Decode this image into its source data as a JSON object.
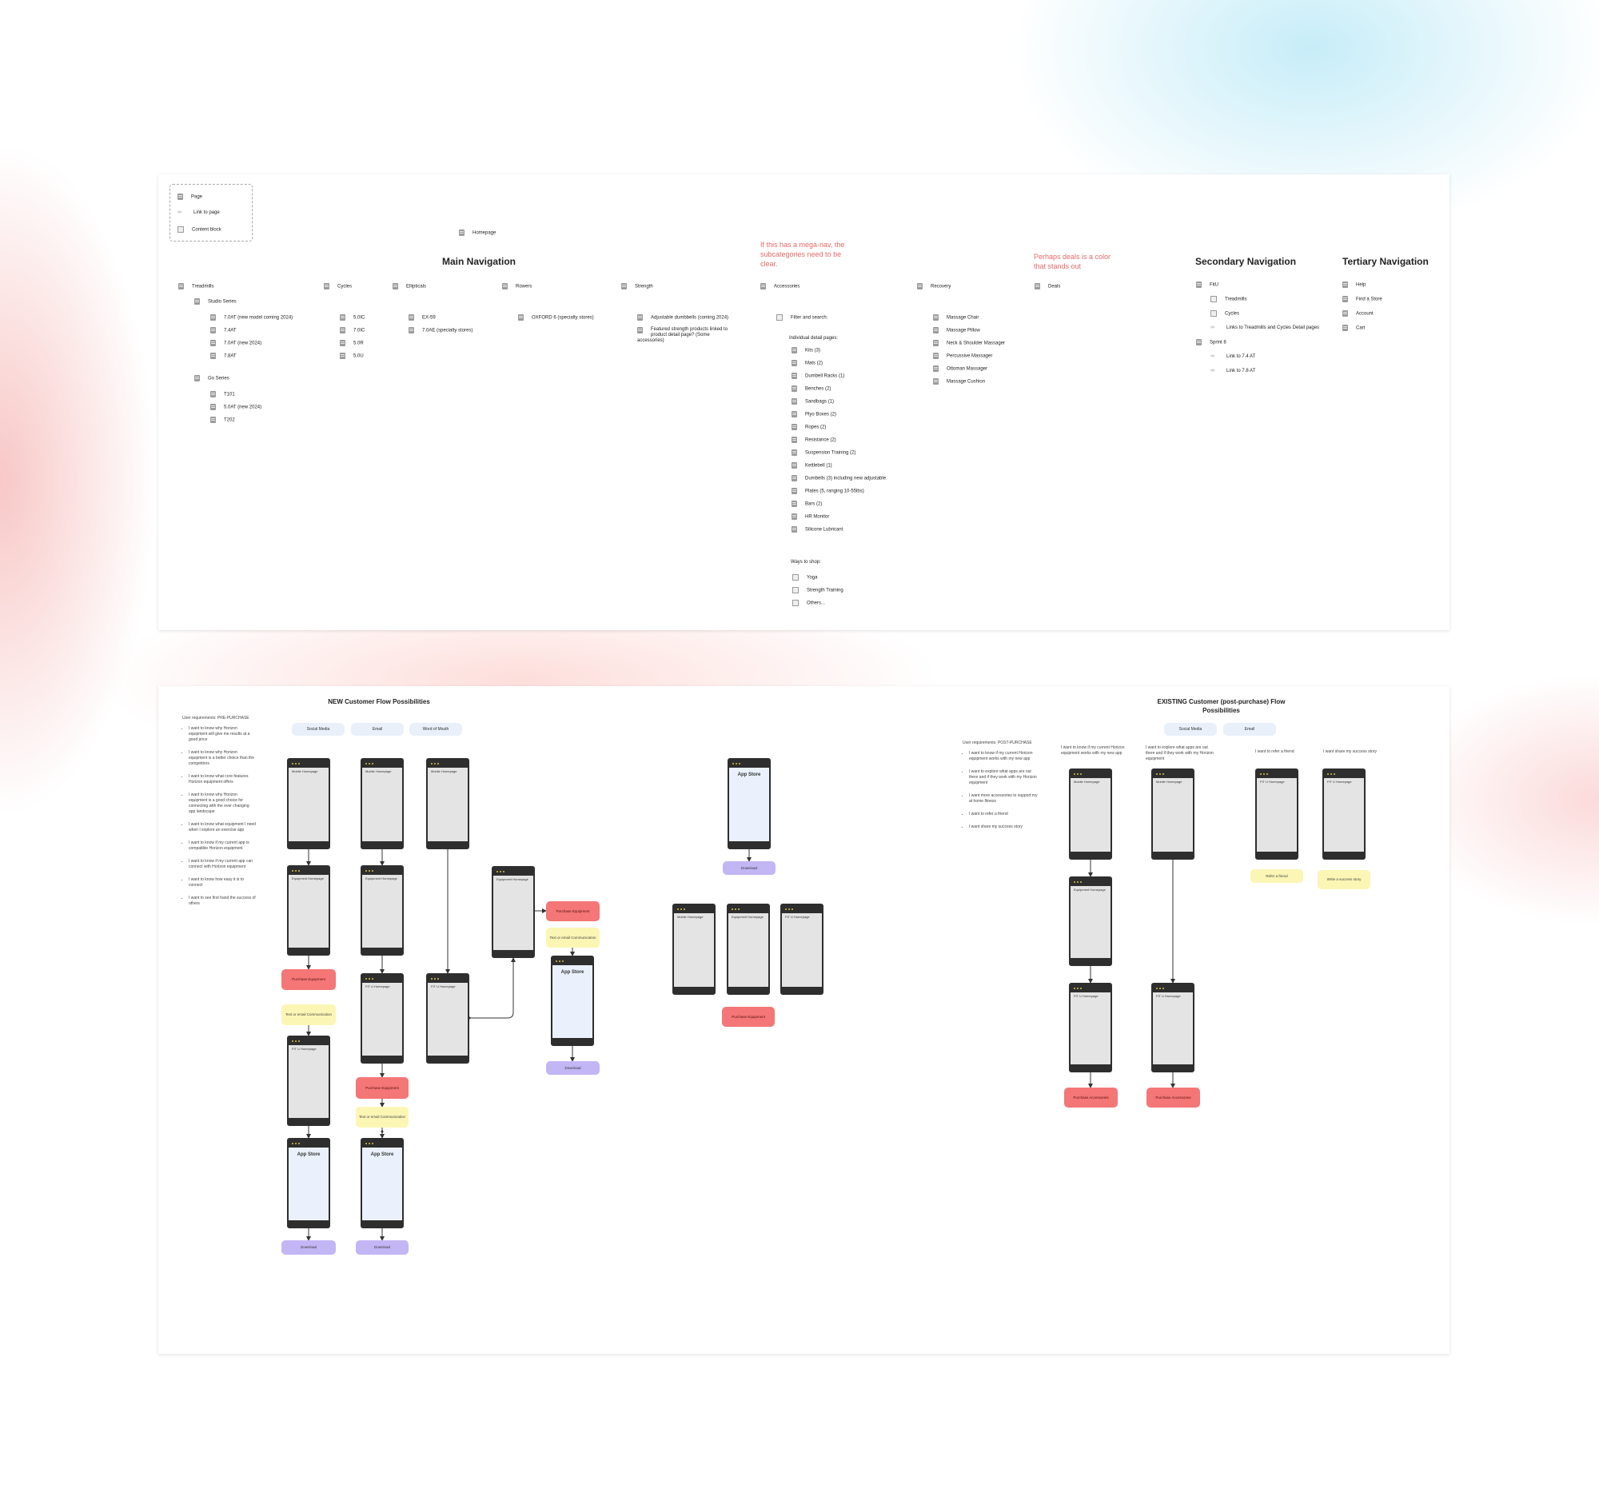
{
  "legend": {
    "page": "Page",
    "link": "Link to page",
    "content": "Content block"
  },
  "homepage": "Homepage",
  "notes": {
    "mega_nav": "If this has a mega-nav, the subcategories need to be clear.",
    "deals_color": "Perhaps deals is a color that stands out"
  },
  "headings": {
    "main": "Main Navigation",
    "secondary": "Secondary Navigation",
    "tertiary": "Tertiary Navigation"
  },
  "main_nav": {
    "treadmills": {
      "label": "Treadmills",
      "studio": {
        "label": "Studio Series",
        "items": [
          "7.0AT (new model coming 2024)",
          "7.4AT",
          "7.0AT (new 2024)",
          "7.8AT"
        ]
      },
      "go": {
        "label": "Go Series",
        "items": [
          "T101",
          "5.0AT (new 2024)",
          "T202"
        ]
      }
    },
    "cycles": {
      "label": "Cycles",
      "items": [
        "5.0IC",
        "7.0IC",
        "5.0R",
        "5.0U"
      ]
    },
    "ellipticals": {
      "label": "Ellipticals",
      "items": [
        "EX-59",
        "7.0AE (specialty stores)"
      ]
    },
    "rowers": {
      "label": "Rowers",
      "items": [
        "OXFORD 6 (specialty stores)"
      ]
    },
    "strength": {
      "label": "Strength",
      "items": [
        "Adjustable dumbbells (coming 2024)",
        "Featured strength products linked to product detail page? (Some accessories)"
      ]
    },
    "accessories": {
      "label": "Accessories",
      "filter": "Filter and search:",
      "detail_label": "Individual detail pages:",
      "items": [
        "Kits (3)",
        "Mats (2)",
        "Dumbell Racks (1)",
        "Benches (2)",
        "Sandbags (1)",
        "Plyo Boxes (2)",
        "Ropes (2)",
        "Resistance (2)",
        "Suspension Training (2)",
        "Kettlebell (1)",
        "Dumbells (3) including new adjustable",
        "Plates (5, ranging 10-55lbs)",
        "Bars (2)",
        "HR Monitor",
        "Silicone Lubricant"
      ],
      "ways_label": "Ways to shop:",
      "ways": [
        "Yoga",
        "Strength Training",
        "Others..."
      ]
    },
    "recovery": {
      "label": "Recovery",
      "items": [
        "Massage Chair",
        "Massage Pillow",
        "Neck & Shoulder Massager",
        "Percussive Massager",
        "Ottoman Massager",
        "Massage Cushion"
      ]
    },
    "deals": {
      "label": "Deals"
    }
  },
  "secondary_nav": {
    "fitu": {
      "label": "FitU",
      "items": [
        "Treadmills",
        "Cycles"
      ],
      "link": "Links to Treadmills and Cycles Detail pages"
    },
    "sprint8": {
      "label": "Sprint 8",
      "links": [
        "Link to 7.4 AT",
        "Link to 7.8 AT"
      ]
    }
  },
  "tertiary_nav": {
    "items": [
      "Help",
      "Find a Store",
      "Account",
      "Cart"
    ]
  },
  "new_flow": {
    "title": "NEW Customer Flow Possibilities",
    "req_label": "User requirements: PRE-PURCHASE",
    "requirements": [
      "I want to know why Horizon equipment will give me results at a good price",
      "I want to know why Horizon equipment is a better choice than the competitors",
      "I want to know what core features Horizon equipment offers",
      "I want to know why Horizon equipment is a good choice for connecting with the ever changing app landscape",
      "I want to know what equipment I need when I explore an exercise app",
      "I want to know if my current app is compatible Horizon equipment",
      "I want to know if my current app can connect with Horizon equipment",
      "I want to know how easy it is to connect",
      "I want to see first hand the success of others"
    ],
    "channels": [
      "Social Media",
      "Email",
      "Word of Mouth"
    ]
  },
  "screens": {
    "mobile": "Mobile Homepage",
    "equipment": "Equipment Homepage",
    "fitu": "FIT U Homepage",
    "app_store": "App Store"
  },
  "actions": {
    "purchase_equipment": "Purchase Equipment",
    "text_email": "Text or email Communication",
    "download": "Download",
    "purchase_accessories": "Purchase Accessories",
    "refer": "Refer a friend",
    "write_story": "Write a success story"
  },
  "existing_flow": {
    "title": "EXISTING Customer (post-purchase) Flow Possibilities",
    "req_label": "User requirements: POST-PURCHASE",
    "requirements": [
      "I want to know if my current Horizon equipment works with my new app",
      "I want to explore what apps are out there and if they work with my Horizon equipment",
      "I want more accessories to support my at home fitness",
      "I want to refer a friend",
      "I want share my success story"
    ],
    "channels": [
      "Social Media",
      "Email"
    ],
    "column_notes": [
      "I want to know if my current Horizon equipment works with my new app",
      "I want to explore what apps are out there and if they work with my Horizon equipment",
      "I want to refer a friend",
      "I want share my success story"
    ]
  },
  "colors": {
    "purchase": "#f47676",
    "communication": "#fbf6b4",
    "download": "#c3b6f5",
    "channel": "#e9f0fa",
    "note": "#e26a6a"
  }
}
